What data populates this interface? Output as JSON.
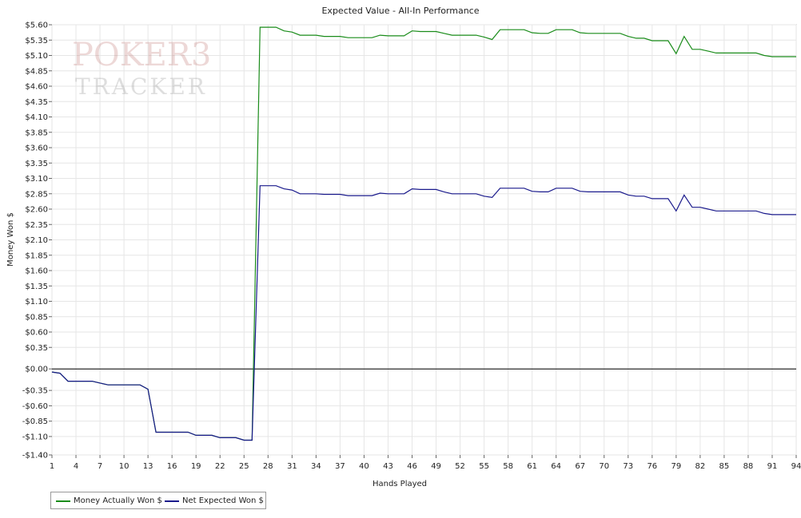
{
  "watermark": {
    "line1": "POKER3",
    "line2": "TRACKER"
  },
  "chart_data": {
    "type": "line",
    "title": "Expected Value - All-In Performance",
    "xlabel": "Hands Played",
    "ylabel": "Money Won $",
    "xlim": [
      1,
      94
    ],
    "ylim": [
      -1.4,
      5.6
    ],
    "xticks": [
      1,
      4,
      7,
      10,
      13,
      16,
      19,
      22,
      25,
      28,
      31,
      34,
      37,
      40,
      43,
      46,
      49,
      52,
      55,
      58,
      61,
      64,
      67,
      70,
      73,
      76,
      79,
      82,
      85,
      88,
      91,
      94
    ],
    "yticks": [
      -1.4,
      -1.1,
      -0.85,
      -0.6,
      -0.35,
      0.0,
      0.35,
      0.6,
      0.85,
      1.1,
      1.35,
      1.6,
      1.85,
      2.1,
      2.35,
      2.6,
      2.85,
      3.1,
      3.35,
      3.6,
      3.85,
      4.1,
      4.35,
      4.6,
      4.85,
      5.1,
      5.35,
      5.6
    ],
    "ytick_labels": [
      "-$1.40",
      "-$1.10",
      "-$0.85",
      "-$0.60",
      "-$0.35",
      "$0.00",
      "$0.35",
      "$0.60",
      "$0.85",
      "$1.10",
      "$1.35",
      "$1.60",
      "$1.85",
      "$2.10",
      "$2.35",
      "$2.60",
      "$2.85",
      "$3.10",
      "$3.35",
      "$3.60",
      "$3.85",
      "$4.10",
      "$4.35",
      "$4.60",
      "$4.85",
      "$5.10",
      "$5.35",
      "$5.60"
    ],
    "grid": true,
    "legend_position": "bottom-left",
    "series": [
      {
        "name": "Money Actually Won $",
        "color": "#1a8c1a",
        "x": [
          1,
          2,
          3,
          4,
          5,
          6,
          7,
          8,
          9,
          10,
          11,
          12,
          13,
          14,
          15,
          16,
          17,
          18,
          19,
          20,
          21,
          22,
          23,
          24,
          25,
          26,
          27,
          28,
          29,
          30,
          31,
          32,
          33,
          34,
          35,
          36,
          37,
          38,
          39,
          40,
          41,
          42,
          43,
          44,
          45,
          46,
          47,
          48,
          49,
          50,
          51,
          52,
          53,
          54,
          55,
          56,
          57,
          58,
          59,
          60,
          61,
          62,
          63,
          64,
          65,
          66,
          67,
          68,
          69,
          70,
          71,
          72,
          73,
          74,
          75,
          76,
          77,
          78,
          79,
          80,
          81,
          82,
          83,
          84,
          85,
          86,
          87,
          88,
          89,
          90,
          91,
          92,
          93,
          94
        ],
        "y": [
          -0.05,
          -0.07,
          -0.2,
          -0.2,
          -0.2,
          -0.2,
          -0.23,
          -0.26,
          -0.26,
          -0.26,
          -0.26,
          -0.26,
          -0.33,
          -1.03,
          -1.03,
          -1.03,
          -1.03,
          -1.03,
          -1.08,
          -1.08,
          -1.08,
          -1.12,
          -1.12,
          -1.12,
          -1.16,
          -1.16,
          5.56,
          5.56,
          5.56,
          5.5,
          5.48,
          5.43,
          5.43,
          5.43,
          5.41,
          5.41,
          5.41,
          5.39,
          5.39,
          5.39,
          5.39,
          5.43,
          5.42,
          5.42,
          5.42,
          5.5,
          5.49,
          5.49,
          5.49,
          5.46,
          5.43,
          5.43,
          5.43,
          5.43,
          5.4,
          5.36,
          5.52,
          5.52,
          5.52,
          5.52,
          5.47,
          5.46,
          5.46,
          5.52,
          5.52,
          5.52,
          5.47,
          5.46,
          5.46,
          5.46,
          5.46,
          5.46,
          5.41,
          5.38,
          5.38,
          5.34,
          5.34,
          5.34,
          5.13,
          5.41,
          5.2,
          5.2,
          5.17,
          5.14,
          5.14,
          5.14,
          5.14,
          5.14,
          5.14,
          5.1,
          5.08,
          5.08,
          5.08,
          5.08
        ]
      },
      {
        "name": "Net Expected Won $",
        "color": "#1a1a8c",
        "x": [
          1,
          2,
          3,
          4,
          5,
          6,
          7,
          8,
          9,
          10,
          11,
          12,
          13,
          14,
          15,
          16,
          17,
          18,
          19,
          20,
          21,
          22,
          23,
          24,
          25,
          26,
          27,
          28,
          29,
          30,
          31,
          32,
          33,
          34,
          35,
          36,
          37,
          38,
          39,
          40,
          41,
          42,
          43,
          44,
          45,
          46,
          47,
          48,
          49,
          50,
          51,
          52,
          53,
          54,
          55,
          56,
          57,
          58,
          59,
          60,
          61,
          62,
          63,
          64,
          65,
          66,
          67,
          68,
          69,
          70,
          71,
          72,
          73,
          74,
          75,
          76,
          77,
          78,
          79,
          80,
          81,
          82,
          83,
          84,
          85,
          86,
          87,
          88,
          89,
          90,
          91,
          92,
          93,
          94
        ],
        "y": [
          -0.05,
          -0.07,
          -0.2,
          -0.2,
          -0.2,
          -0.2,
          -0.23,
          -0.26,
          -0.26,
          -0.26,
          -0.26,
          -0.26,
          -0.33,
          -1.03,
          -1.03,
          -1.03,
          -1.03,
          -1.03,
          -1.08,
          -1.08,
          -1.08,
          -1.12,
          -1.12,
          -1.12,
          -1.16,
          -1.16,
          2.98,
          2.98,
          2.98,
          2.93,
          2.91,
          2.85,
          2.85,
          2.85,
          2.84,
          2.84,
          2.84,
          2.82,
          2.82,
          2.82,
          2.82,
          2.86,
          2.85,
          2.85,
          2.85,
          2.93,
          2.92,
          2.92,
          2.92,
          2.88,
          2.85,
          2.85,
          2.85,
          2.85,
          2.81,
          2.79,
          2.94,
          2.94,
          2.94,
          2.94,
          2.89,
          2.88,
          2.88,
          2.94,
          2.94,
          2.94,
          2.89,
          2.88,
          2.88,
          2.88,
          2.88,
          2.88,
          2.83,
          2.81,
          2.81,
          2.77,
          2.77,
          2.77,
          2.57,
          2.83,
          2.63,
          2.63,
          2.6,
          2.57,
          2.57,
          2.57,
          2.57,
          2.57,
          2.57,
          2.53,
          2.51,
          2.51,
          2.51,
          2.51
        ]
      }
    ]
  }
}
